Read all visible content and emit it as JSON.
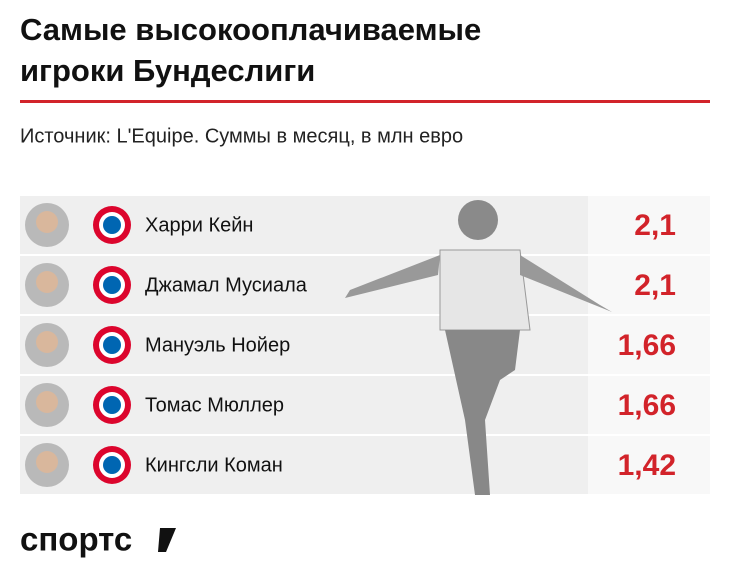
{
  "header": {
    "title_line1": "Самые высокооплачиваемые",
    "title_line2": "игроки Бундеслиги",
    "subtitle": "Источник: L'Equipe. Суммы в месяц, в млн евро"
  },
  "table": {
    "rows": [
      {
        "name": "Харри Кейн",
        "value": "2,1"
      },
      {
        "name": "Джамал Мусиала",
        "value": "2,1"
      },
      {
        "name": "Мануэль Нойер",
        "value": "1,66"
      },
      {
        "name": "Томас Мюллер",
        "value": "1,66"
      },
      {
        "name": "Кингсли Коман",
        "value": "1,42"
      }
    ]
  },
  "footer": {
    "logo": "спортс"
  }
}
